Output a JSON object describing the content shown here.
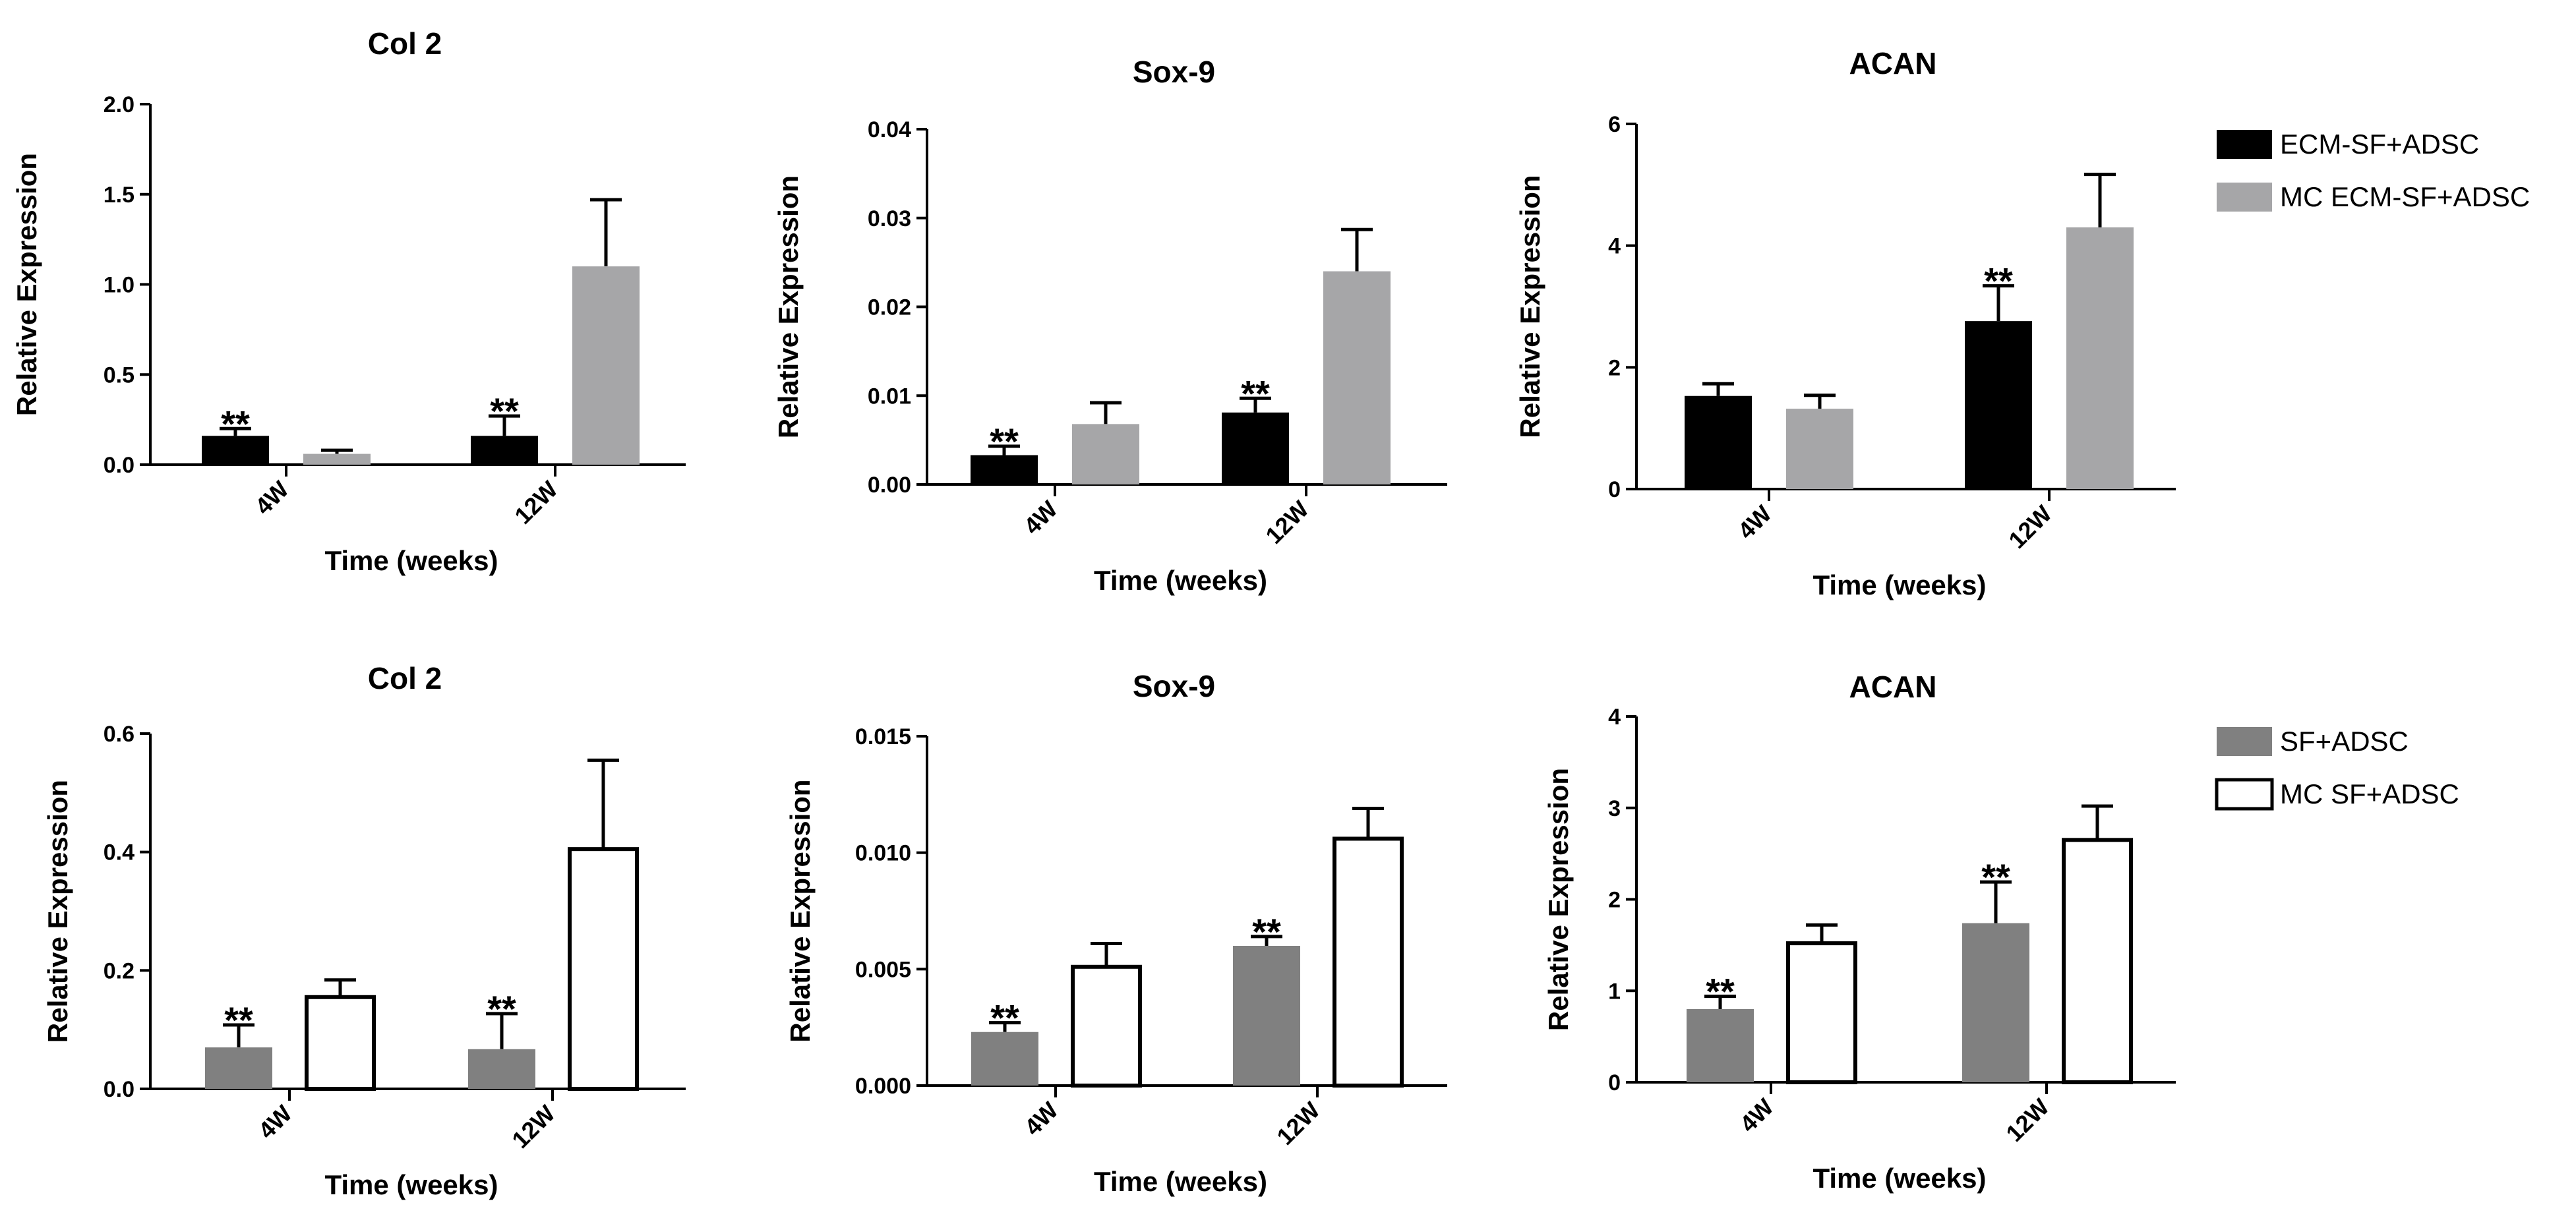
{
  "legends": [
    {
      "row": "top",
      "entries": [
        {
          "label": "ECM-SF+ADSC",
          "color": "#000000"
        },
        {
          "label": "MC ECM-SF+ADSC",
          "color": "#a6a6a8"
        }
      ]
    },
    {
      "row": "bottom",
      "entries": [
        {
          "label": "SF+ADSC",
          "color": "#808080"
        },
        {
          "label": "MC SF+ADSC",
          "color": "#ffffff"
        }
      ]
    }
  ],
  "chart_data": [
    {
      "type": "bar",
      "title": "Col 2",
      "xlabel": "Time (weeks)",
      "ylabel": "Relative Expression",
      "categories": [
        "4W",
        "12W"
      ],
      "ylim": [
        0,
        2.0
      ],
      "yticks": [
        "0.0",
        "0.5",
        "1.0",
        "1.5",
        "2.0"
      ],
      "series": [
        {
          "name": "ECM-SF+ADSC",
          "color": "#000000",
          "values": [
            0.16,
            0.16
          ],
          "errors": [
            0.04,
            0.11
          ],
          "significance": [
            "**",
            "**"
          ]
        },
        {
          "name": "MC ECM-SF+ADSC",
          "color": "#a6a6a8",
          "values": [
            0.06,
            1.1
          ],
          "errors": [
            0.02,
            0.37
          ],
          "significance": [
            "",
            ""
          ]
        }
      ]
    },
    {
      "type": "bar",
      "title": "Sox-9",
      "xlabel": "Time (weeks)",
      "ylabel": "Relative Expression",
      "categories": [
        "4W",
        "12W"
      ],
      "ylim": [
        0,
        0.04
      ],
      "yticks": [
        "0.00",
        "0.01",
        "0.02",
        "0.03",
        "0.04"
      ],
      "series": [
        {
          "name": "ECM-SF+ADSC",
          "color": "#000000",
          "values": [
            0.0033,
            0.0081
          ],
          "errors": [
            0.001,
            0.0016
          ],
          "significance": [
            "**",
            "**"
          ]
        },
        {
          "name": "MC ECM-SF+ADSC",
          "color": "#a6a6a8",
          "values": [
            0.0068,
            0.024
          ],
          "errors": [
            0.0024,
            0.0047
          ],
          "significance": [
            "",
            ""
          ]
        }
      ]
    },
    {
      "type": "bar",
      "title": "ACAN",
      "xlabel": "Time (weeks)",
      "ylabel": "Relative Expression",
      "categories": [
        "4W",
        "12W"
      ],
      "ylim": [
        0,
        6
      ],
      "yticks": [
        "0",
        "2",
        "4",
        "6"
      ],
      "series": [
        {
          "name": "ECM-SF+ADSC",
          "color": "#000000",
          "values": [
            1.53,
            2.76
          ],
          "errors": [
            0.2,
            0.58
          ],
          "significance": [
            "",
            "**"
          ]
        },
        {
          "name": "MC ECM-SF+ADSC",
          "color": "#a6a6a8",
          "values": [
            1.32,
            4.3
          ],
          "errors": [
            0.22,
            0.87
          ],
          "significance": [
            "",
            ""
          ]
        }
      ]
    },
    {
      "type": "bar",
      "title": "Col 2",
      "xlabel": "Time (weeks)",
      "ylabel": "Relative Expression",
      "categories": [
        "4W",
        "12W"
      ],
      "ylim": [
        0,
        0.6
      ],
      "yticks": [
        "0.0",
        "0.2",
        "0.4",
        "0.6"
      ],
      "series": [
        {
          "name": "SF+ADSC",
          "color": "#808080",
          "values": [
            0.07,
            0.067
          ],
          "errors": [
            0.038,
            0.06
          ],
          "significance": [
            "**",
            "**"
          ]
        },
        {
          "name": "MC SF+ADSC",
          "color": "#ffffff",
          "values": [
            0.155,
            0.405
          ],
          "errors": [
            0.029,
            0.15
          ],
          "significance": [
            "",
            ""
          ]
        }
      ]
    },
    {
      "type": "bar",
      "title": "Sox-9",
      "xlabel": "Time (weeks)",
      "ylabel": "Relative Expression",
      "categories": [
        "4W",
        "12W"
      ],
      "ylim": [
        0,
        0.015
      ],
      "yticks": [
        "0.000",
        "0.005",
        "0.010",
        "0.015"
      ],
      "series": [
        {
          "name": "SF+ADSC",
          "color": "#808080",
          "values": [
            0.0023,
            0.006
          ],
          "errors": [
            0.0004,
            0.0004
          ],
          "significance": [
            "**",
            "**"
          ]
        },
        {
          "name": "MC SF+ADSC",
          "color": "#ffffff",
          "values": [
            0.0051,
            0.0106
          ],
          "errors": [
            0.001,
            0.0013
          ],
          "significance": [
            "",
            ""
          ]
        }
      ]
    },
    {
      "type": "bar",
      "title": "ACAN",
      "xlabel": "Time (weeks)",
      "ylabel": "Relative Expression",
      "categories": [
        "4W",
        "12W"
      ],
      "ylim": [
        0,
        4
      ],
      "yticks": [
        "0",
        "1",
        "2",
        "3",
        "4"
      ],
      "series": [
        {
          "name": "SF+ADSC",
          "color": "#808080",
          "values": [
            0.8,
            1.74
          ],
          "errors": [
            0.14,
            0.45
          ],
          "significance": [
            "**",
            "**"
          ]
        },
        {
          "name": "MC SF+ADSC",
          "color": "#ffffff",
          "values": [
            1.52,
            2.65
          ],
          "errors": [
            0.2,
            0.37
          ],
          "significance": [
            "",
            ""
          ]
        }
      ]
    }
  ]
}
